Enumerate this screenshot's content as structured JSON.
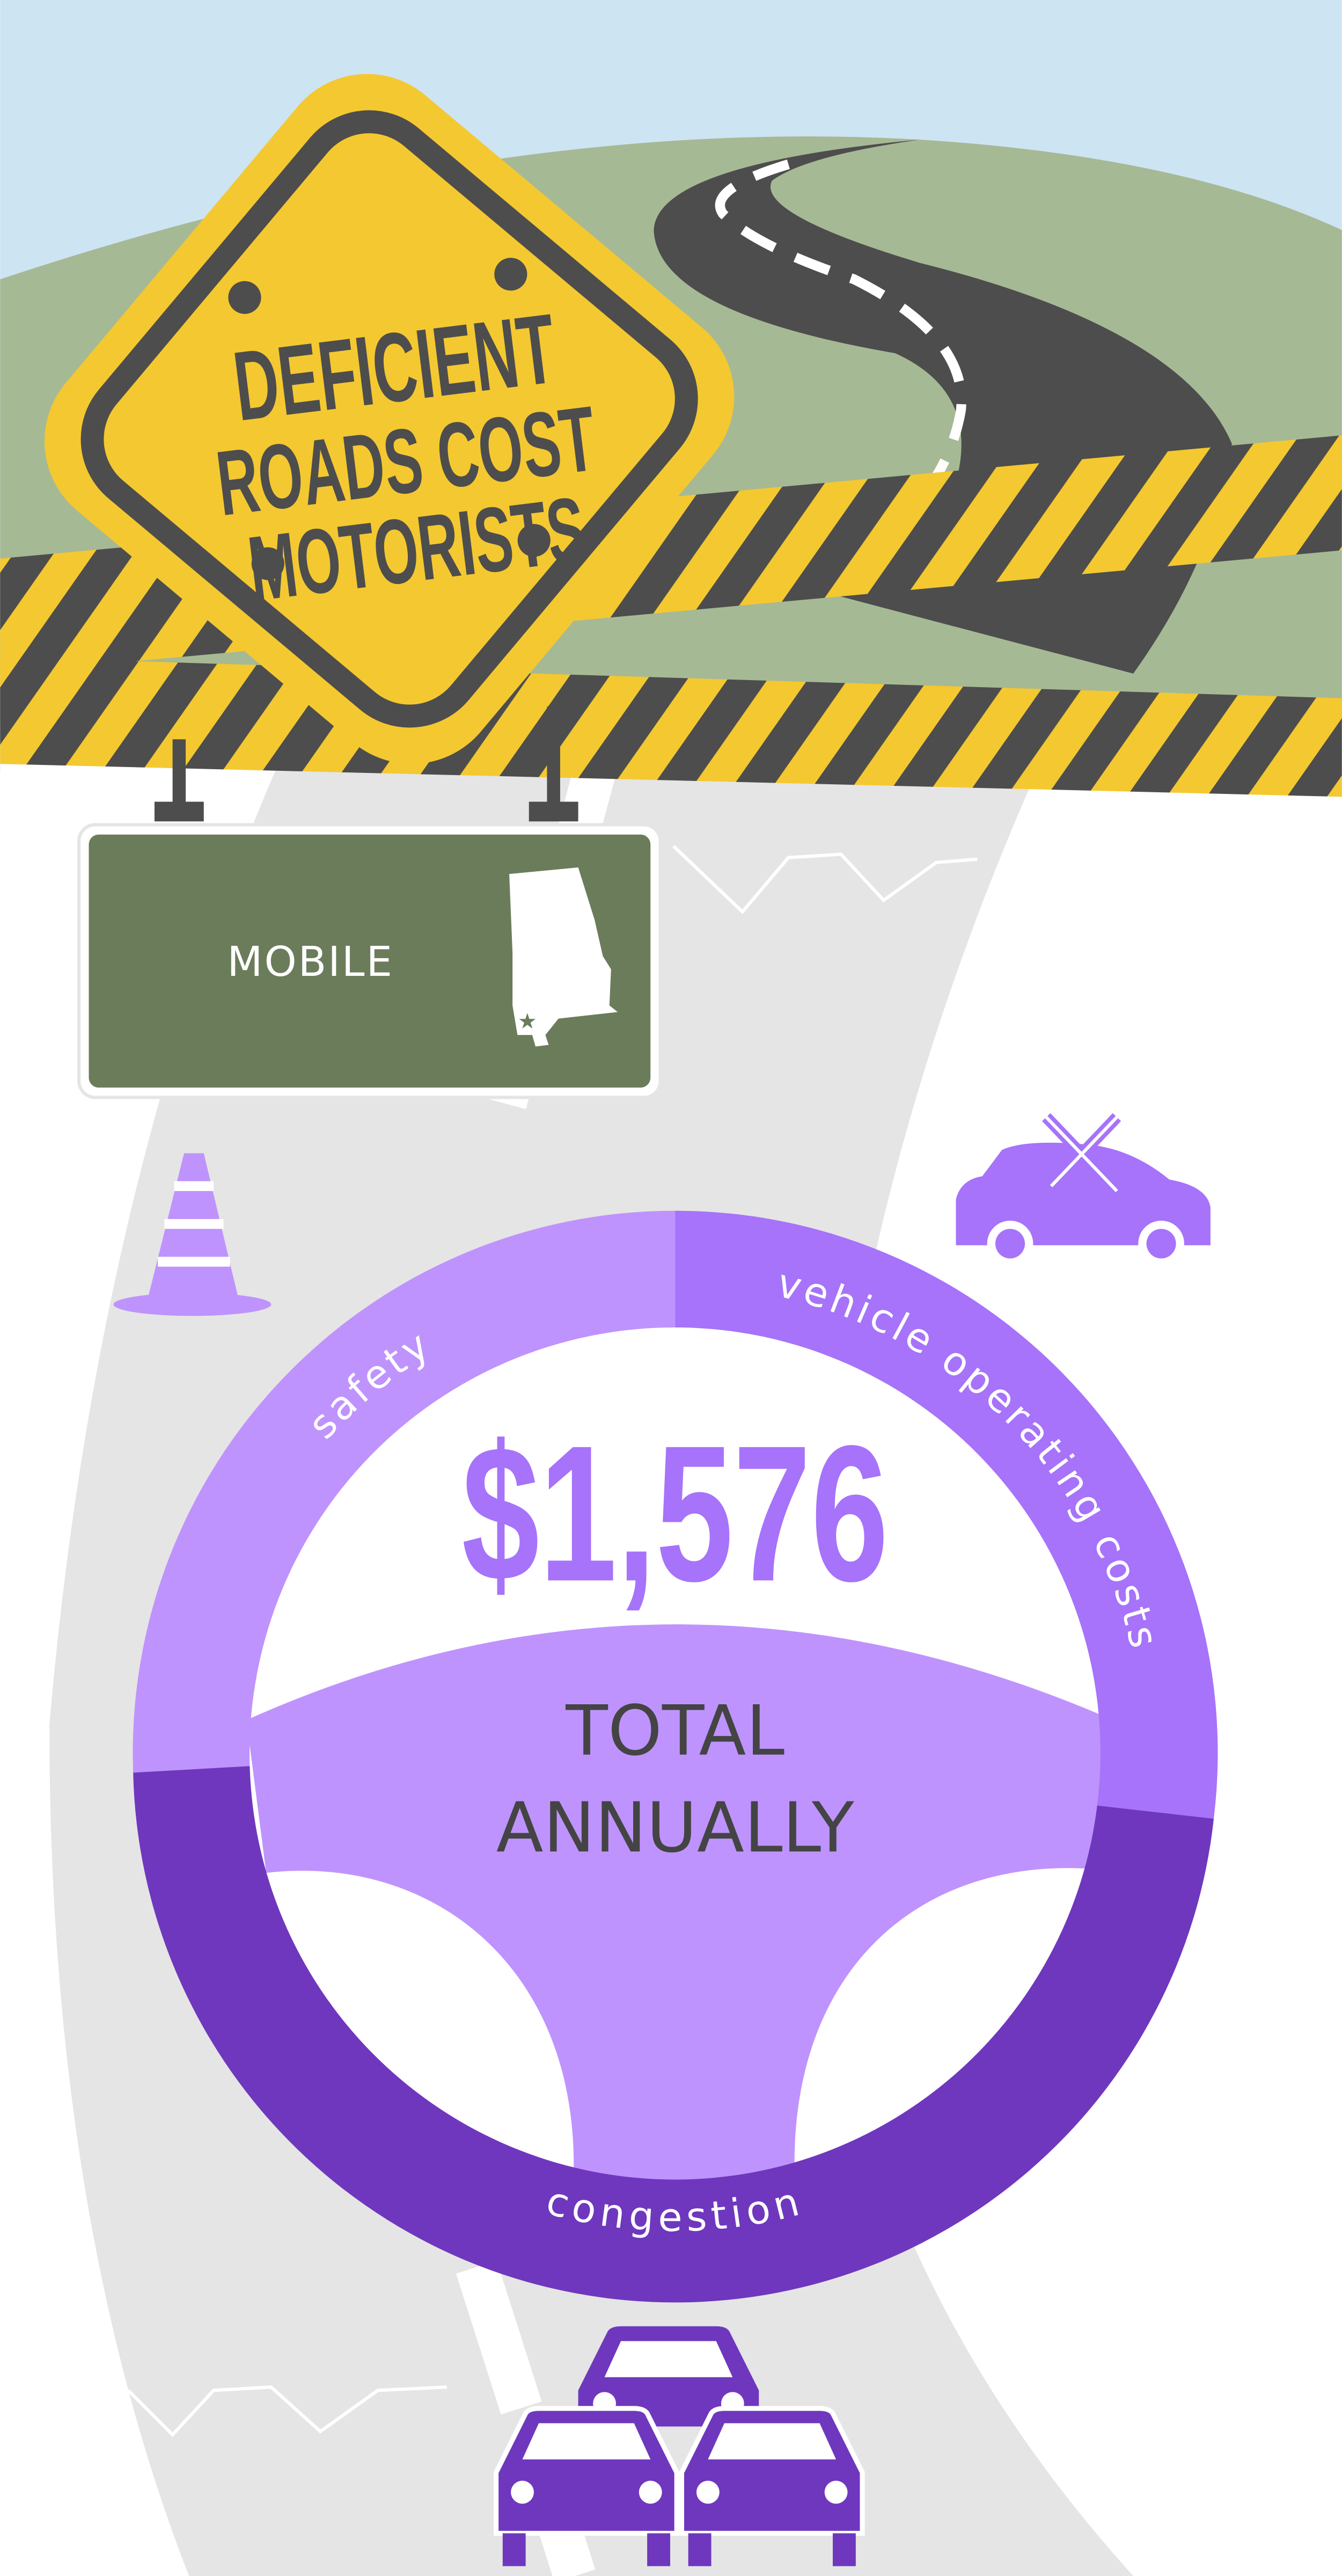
{
  "header": {
    "title_lines": [
      "DEFICIENT",
      "ROADS COST",
      "MOTORISTS"
    ]
  },
  "location_sign": {
    "city": "MOBILE",
    "state_icon": "alabama-map-icon"
  },
  "wheel": {
    "total_amount": "$1,576",
    "total_label_lines": [
      "TOTAL",
      "ANNUALLY"
    ],
    "segments": [
      {
        "label": "safety",
        "color": "#bf93fd"
      },
      {
        "label": "vehicle operating costs",
        "color": "#a673fa"
      },
      {
        "label": "congestion",
        "color": "#6f37be"
      }
    ]
  },
  "icons": [
    "traffic-cone-icon",
    "car-repair-icon",
    "traffic-jam-icon"
  ],
  "colors": {
    "sky": "#cde4f3",
    "hills": "#a6b995",
    "sign_yellow": "#f4c830",
    "asphalt": "#4d4d4d",
    "sign_green": "#6b7c5b",
    "road_grey": "#e5e5e5"
  }
}
